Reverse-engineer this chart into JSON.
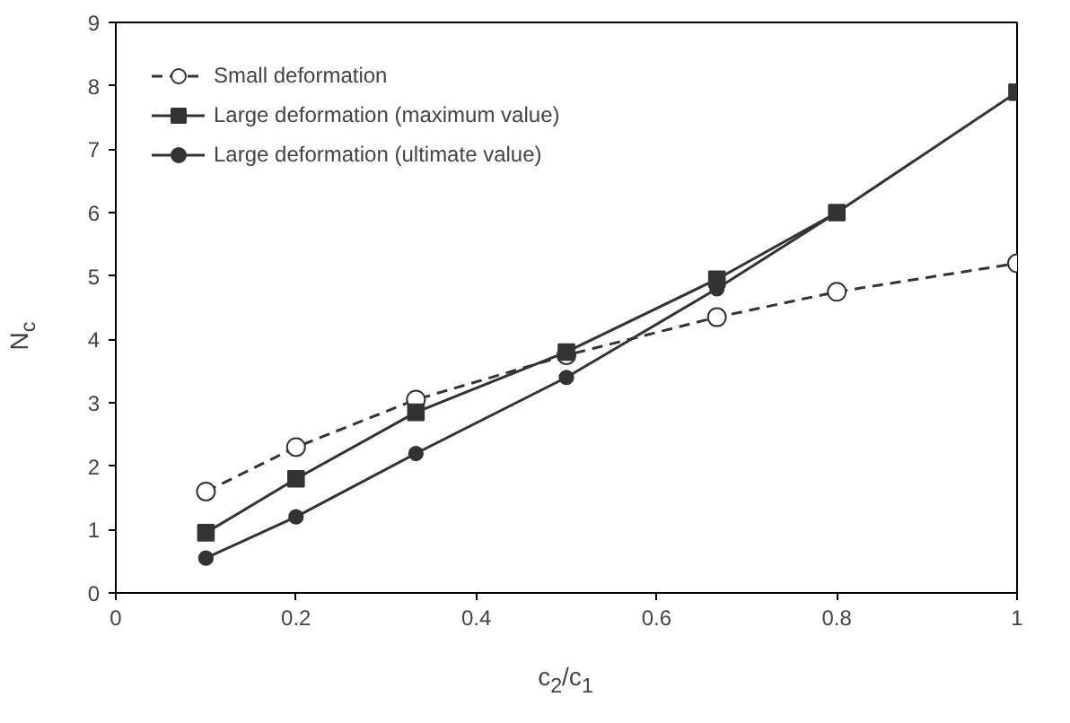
{
  "chart_data": {
    "type": "line",
    "xlabel": "c$_{2}$/c$_{1}$",
    "ylabel": "N$_{c}$",
    "x": [
      0.1,
      0.2,
      0.333,
      0.5,
      0.667,
      0.8,
      1.0
    ],
    "series": [
      {
        "name": "Small deformation",
        "color": "#333333",
        "values": [
          1.6,
          2.3,
          3.05,
          3.75,
          4.35,
          4.75,
          5.2
        ],
        "marker": "circle",
        "line_style": "dashed"
      },
      {
        "name": "Large deformation (maximum value)",
        "color": "#333333",
        "values": [
          0.95,
          1.8,
          2.85,
          3.8,
          4.95,
          6.0,
          7.9
        ],
        "marker": "square",
        "line_style": "solid"
      },
      {
        "name": "Large deformation (ultimate value)",
        "color": "#333333",
        "values": [
          0.55,
          1.2,
          2.2,
          3.4,
          4.8,
          6.0,
          null
        ],
        "marker": "circle",
        "line_style": "solid"
      }
    ],
    "xlim": [
      0,
      1
    ],
    "xticks": [
      0,
      0.2,
      0.4,
      0.6,
      0.8,
      1
    ],
    "ylim": [
      0,
      9
    ],
    "yticks": [
      0,
      1,
      2,
      3,
      4,
      5,
      6,
      7,
      8,
      9
    ],
    "grid": false,
    "legend": "top left"
  }
}
